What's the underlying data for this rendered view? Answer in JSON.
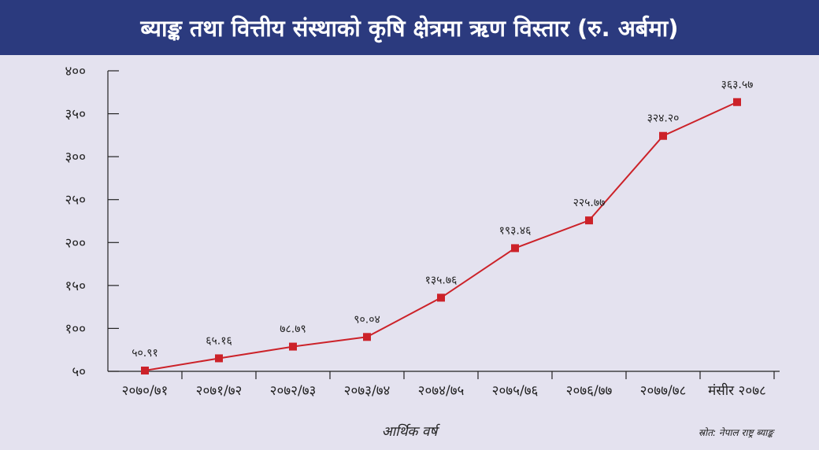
{
  "title": "ब्याङ्क तथा वित्तीय संस्थाको कृषि क्षेत्रमा ऋण विस्तार (रु. अर्बमा)",
  "source": "स्रोत: नेपाल राष्ट्र ब्याङ्क",
  "colors": {
    "title_bg": "#2b3a7e",
    "background": "#e4e2ef",
    "line": "#cc2229",
    "marker": "#cc2229",
    "axis": "#222222"
  },
  "chart_data": {
    "type": "line",
    "title": "ब्याङ्क तथा वित्तीय संस्थाको कृषि क्षेत्रमा ऋण विस्तार (रु. अर्बमा)",
    "xlabel": "आर्थिक वर्ष",
    "ylabel": "",
    "ylim": [
      50,
      400
    ],
    "yticks": [
      50,
      100,
      150,
      200,
      250,
      300,
      350,
      400
    ],
    "ytick_labels": [
      "५०",
      "१००",
      "१५०",
      "२००",
      "२५०",
      "३००",
      "३५०",
      "४००"
    ],
    "categories": [
      "२०७०/७१",
      "२०७१/७२",
      "२०७२/७३",
      "२०७३/७४",
      "२०७४/७५",
      "२०७५/७६",
      "२०७६/७७",
      "२०७७/७८",
      "मंसीर २०७८"
    ],
    "values": [
      50.91,
      65.16,
      78.79,
      90.04,
      135.76,
      193.46,
      225.77,
      324.2,
      363.57
    ],
    "value_labels": [
      "५०.९१",
      "६५.१६",
      "७८.७९",
      "९०.०४",
      "१३५.७६",
      "१९३.४६",
      "२२५.७७",
      "३२४.२०",
      "३६३.५७"
    ],
    "grid": false,
    "legend": "none"
  }
}
